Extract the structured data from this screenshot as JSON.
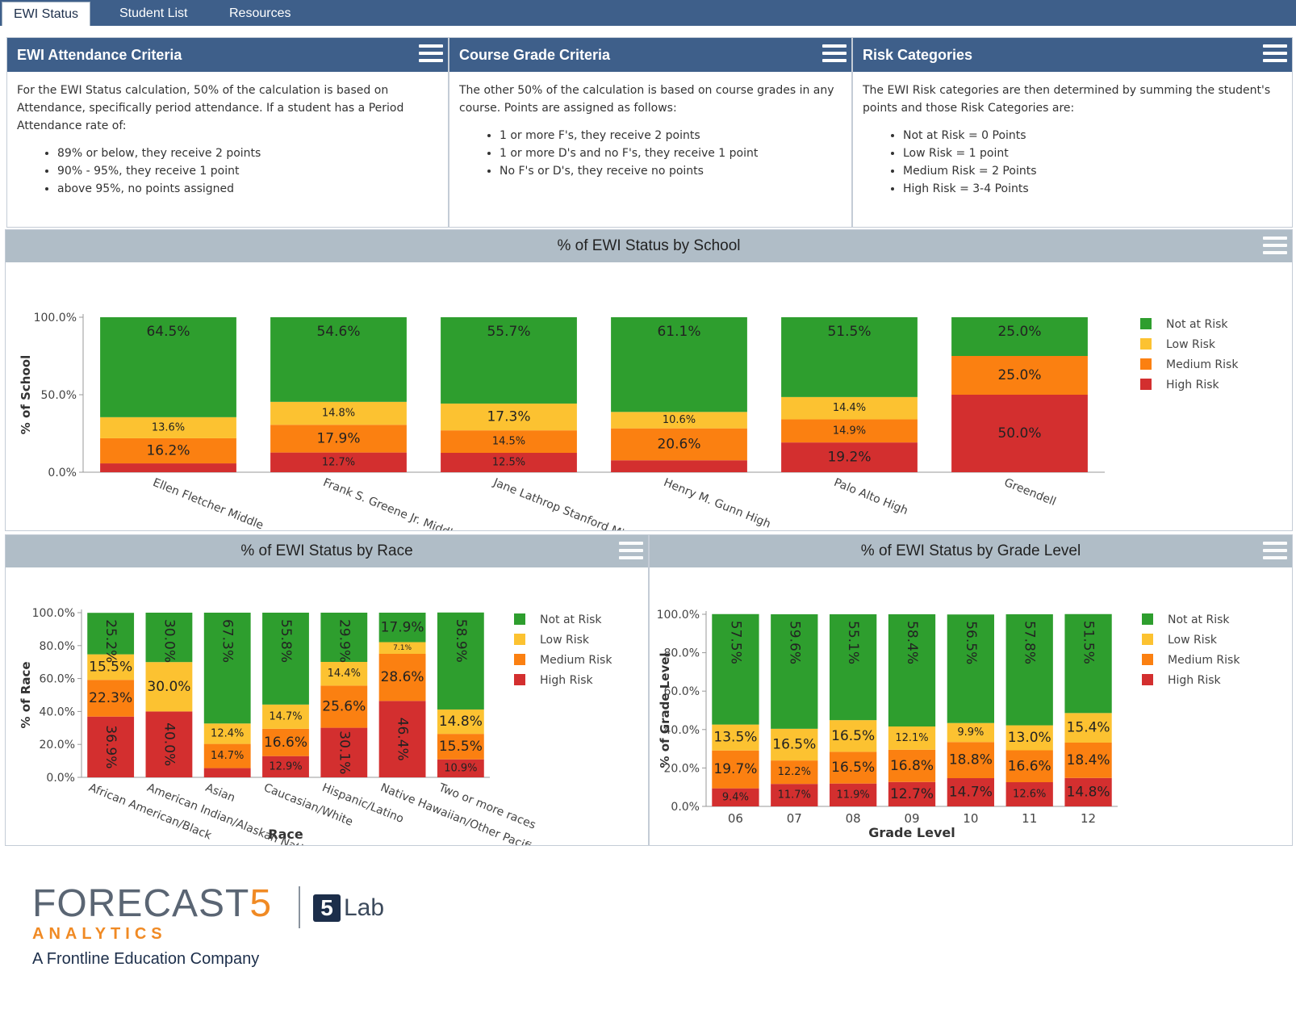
{
  "tabs": [
    {
      "label": "EWI Status",
      "active": true
    },
    {
      "label": "Student List",
      "active": false
    },
    {
      "label": "Resources",
      "active": false
    }
  ],
  "panels": {
    "attendance": {
      "title": "EWI Attendance Criteria",
      "intro": "For the EWI Status calculation, 50% of the calculation is based on Attendance, specifically period attendance.  If a student has a Period Attendance rate of:",
      "items": [
        "89% or below, they receive 2 points",
        "90% - 95%, they receive 1 point",
        "above 95%, no points assigned"
      ]
    },
    "grades": {
      "title": "Course Grade Criteria",
      "intro": "The other 50% of the calculation is based on course grades in any course.  Points are assigned as follows:",
      "items": [
        "1 or more F's, they receive 2 points",
        "1 or more D's and no F's, they receive 1 point",
        "No F's or D's, they receive no points"
      ]
    },
    "risk": {
      "title": "Risk Categories",
      "intro": "The EWI Risk categories are then determined by summing the student's points and those Risk Categories are:",
      "items": [
        "Not at Risk = 0 Points",
        "Low Risk = 1 point",
        "Medium Risk = 2 Points",
        "High Risk = 3-4 Points"
      ]
    }
  },
  "legend": {
    "entries": [
      "Not at Risk",
      "Low Risk",
      "Medium Risk",
      "High Risk"
    ],
    "colors": [
      "#2e9e2e",
      "#fcc231",
      "#fb8011",
      "#d32f2f"
    ]
  },
  "chart_data": [
    {
      "id": "school",
      "type": "bar",
      "stacked": true,
      "title": "% of EWI Status by School",
      "ylabel": "% of School",
      "xlabel": "",
      "ylim": [
        0,
        100
      ],
      "yticks": [
        "0.0%",
        "50.0%",
        "100.0%"
      ],
      "ytick_values": [
        0,
        50,
        100
      ],
      "categories": [
        "Ellen Fletcher Middle",
        "Frank S. Greene Jr. Middle",
        "Jane Lathrop Stanford Middle",
        "Henry M. Gunn High",
        "Palo Alto High",
        "Greendell"
      ],
      "series": [
        {
          "name": "High Risk",
          "values": [
            5.7,
            12.7,
            12.5,
            7.7,
            19.2,
            50.0
          ],
          "labels": [
            "",
            "12.7%",
            "12.5%",
            "",
            "19.2%",
            "50.0%"
          ]
        },
        {
          "name": "Medium Risk",
          "values": [
            16.2,
            17.9,
            14.5,
            20.6,
            14.9,
            25.0
          ],
          "labels": [
            "16.2%",
            "17.9%",
            "14.5%",
            "20.6%",
            "14.9%",
            "25.0%"
          ]
        },
        {
          "name": "Low Risk",
          "values": [
            13.6,
            14.8,
            17.3,
            10.6,
            14.4,
            0
          ],
          "labels": [
            "13.6%",
            "14.8%",
            "17.3%",
            "10.6%",
            "14.4%",
            ""
          ]
        },
        {
          "name": "Not at Risk",
          "values": [
            64.5,
            54.6,
            55.7,
            61.1,
            51.5,
            25.0
          ],
          "labels": [
            "64.5%",
            "54.6%",
            "55.7%",
            "61.1%",
            "51.5%",
            "25.0%"
          ]
        }
      ]
    },
    {
      "id": "race",
      "type": "bar",
      "stacked": true,
      "title": "% of EWI Status by Race",
      "ylabel": "% of Race",
      "xlabel": "Race",
      "ylim": [
        0,
        100
      ],
      "yticks": [
        "0.0%",
        "20.0%",
        "40.0%",
        "60.0%",
        "80.0%",
        "100.0%"
      ],
      "ytick_values": [
        0,
        20,
        40,
        60,
        80,
        100
      ],
      "categories": [
        "African American/Black",
        "American Indian/Alaskan Native",
        "Asian",
        "Caucasian/White",
        "Hispanic/Latino",
        "Native Hawaiian/Other Pacific Island...",
        "Two or more races"
      ],
      "series": [
        {
          "name": "High Risk",
          "values": [
            36.9,
            40.0,
            5.6,
            12.9,
            30.1,
            46.4,
            10.9
          ],
          "labels": [
            "36.9%",
            "40.0%",
            "",
            "12.9%",
            "30.1%",
            "46.4%",
            "10.9%"
          ]
        },
        {
          "name": "Medium Risk",
          "values": [
            22.3,
            0,
            14.7,
            16.6,
            25.6,
            28.6,
            15.5
          ],
          "labels": [
            "22.3%",
            "",
            "14.7%",
            "16.6%",
            "25.6%",
            "28.6%",
            "15.5%"
          ]
        },
        {
          "name": "Low Risk",
          "values": [
            15.5,
            30.0,
            12.4,
            14.7,
            14.4,
            7.1,
            14.8
          ],
          "labels": [
            "15.5%",
            "30.0%",
            "12.4%",
            "14.7%",
            "14.4%",
            "7.1%",
            "14.8%"
          ]
        },
        {
          "name": "Not at Risk",
          "values": [
            25.2,
            30.0,
            67.3,
            55.8,
            29.9,
            17.9,
            58.9
          ],
          "labels": [
            "25.2%",
            "30.0%",
            "67.3%",
            "55.8%",
            "29.9%",
            "17.9%",
            "58.9%"
          ]
        }
      ]
    },
    {
      "id": "grade",
      "type": "bar",
      "stacked": true,
      "title": "% of EWI Status by Grade Level",
      "ylabel": "% of Grade Level",
      "xlabel": "Grade Level",
      "ylim": [
        0,
        100
      ],
      "yticks": [
        "0.0%",
        "20.0%",
        "40.0%",
        "60.0%",
        "80.0%",
        "100.0%"
      ],
      "ytick_values": [
        0,
        20,
        40,
        60,
        80,
        100
      ],
      "categories": [
        "06",
        "07",
        "08",
        "09",
        "10",
        "11",
        "12"
      ],
      "series": [
        {
          "name": "High Risk",
          "values": [
            9.4,
            11.7,
            11.9,
            12.7,
            14.7,
            12.6,
            14.8
          ],
          "labels": [
            "9.4%",
            "11.7%",
            "11.9%",
            "12.7%",
            "14.7%",
            "12.6%",
            "14.8%"
          ]
        },
        {
          "name": "Medium Risk",
          "values": [
            19.7,
            12.2,
            16.5,
            16.8,
            18.8,
            16.6,
            18.4
          ],
          "labels": [
            "19.7%",
            "12.2%",
            "16.5%",
            "16.8%",
            "18.8%",
            "16.6%",
            "18.4%"
          ]
        },
        {
          "name": "Low Risk",
          "values": [
            13.5,
            16.5,
            16.5,
            12.1,
            9.9,
            13.0,
            15.4
          ],
          "labels": [
            "13.5%",
            "16.5%",
            "16.5%",
            "12.1%",
            "9.9%",
            "13.0%",
            "15.4%"
          ]
        },
        {
          "name": "Not at Risk",
          "values": [
            57.5,
            59.6,
            55.1,
            58.4,
            56.5,
            57.8,
            51.5
          ],
          "labels": [
            "57.5%",
            "59.6%",
            "55.1%",
            "58.4%",
            "56.5%",
            "57.8%",
            "51.5%"
          ]
        }
      ]
    }
  ],
  "footer": {
    "brand_main": "FORECAST",
    "brand_five": "5",
    "brand_sub": "ANALYTICS",
    "company": "A Frontline Education Company",
    "lab_box": "5",
    "lab_text": "Lab"
  }
}
